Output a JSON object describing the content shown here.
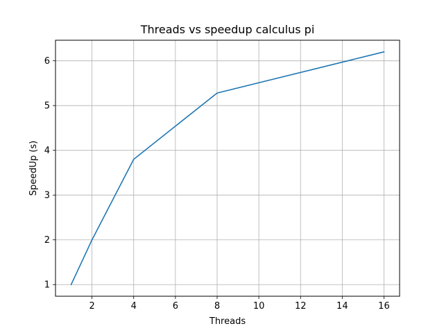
{
  "chart_data": {
    "type": "line",
    "title": "Threads vs speedup calculus pi",
    "xlabel": "Threads",
    "ylabel": "SpeedUp (s)",
    "xlim": [
      0.25,
      16.75
    ],
    "ylim": [
      0.74,
      6.46
    ],
    "x_ticks": [
      2,
      4,
      6,
      8,
      10,
      12,
      14,
      16
    ],
    "y_ticks": [
      1,
      2,
      3,
      4,
      5,
      6
    ],
    "grid": true,
    "series": [
      {
        "x": [
          1,
          2,
          4,
          8,
          16
        ],
        "values": [
          1.0,
          2.0,
          3.8,
          5.28,
          6.2
        ],
        "color": "#1f77b4"
      }
    ],
    "colors": {
      "grid": "#b0b0b0",
      "axes": "#000000",
      "line": "#1f77b4"
    }
  }
}
